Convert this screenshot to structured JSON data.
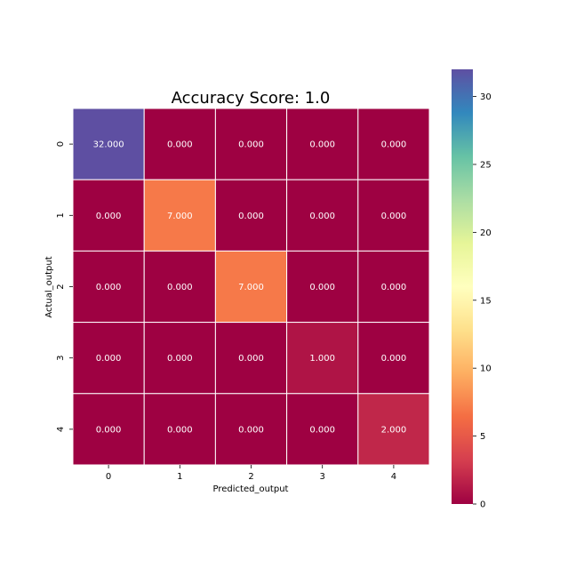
{
  "chart_data": {
    "type": "heatmap",
    "title": "Accuracy Score: 1.0",
    "xlabel": "Predicted_output",
    "ylabel": "Actual_output",
    "x_categories": [
      "0",
      "1",
      "2",
      "3",
      "4"
    ],
    "y_categories": [
      "0",
      "1",
      "2",
      "3",
      "4"
    ],
    "values": [
      [
        32,
        0,
        0,
        0,
        0
      ],
      [
        0,
        7,
        0,
        0,
        0
      ],
      [
        0,
        0,
        7,
        0,
        0
      ],
      [
        0,
        0,
        0,
        1,
        0
      ],
      [
        0,
        0,
        0,
        0,
        2
      ]
    ],
    "annotation_format": "3 decimals",
    "colormap": "Spectral",
    "color_range": [
      0,
      32
    ],
    "colorbar_ticks": [
      0,
      5,
      10,
      15,
      20,
      25,
      30
    ],
    "cell_line_color": "#ffffff"
  }
}
